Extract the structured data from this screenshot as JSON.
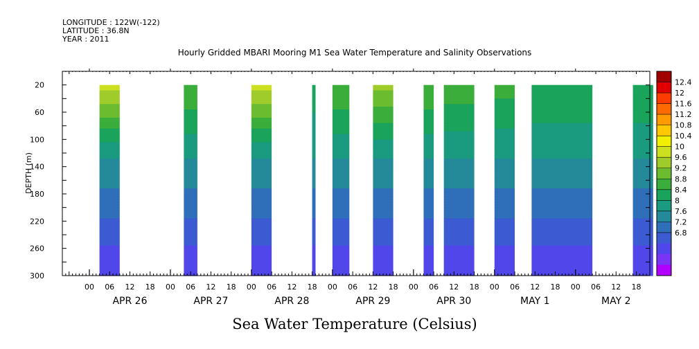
{
  "header": {
    "longitude": "LONGITUDE : 122W(-122)",
    "latitude": "LATITUDE : 36.8N",
    "year": "YEAR : 2011"
  },
  "chart_data": {
    "type": "heatmap",
    "title": "Hourly Gridded MBARI Mooring M1 Sea Water Temperature and Salinity Observations",
    "bottom_label": "Sea Water Temperature (Celsius)",
    "ylabel": "DEPTH (m)",
    "y_axis": {
      "inverted": true,
      "range": [
        0,
        300
      ],
      "ticks": [
        20,
        60,
        100,
        140,
        180,
        220,
        260,
        300
      ],
      "data_range": [
        20,
        300
      ]
    },
    "x_axis": {
      "range_hours": [
        "2011-04-25T16:00",
        "2011-05-02T22:00"
      ],
      "hour_ticks": [
        "00",
        "06",
        "12",
        "18",
        "00",
        "06",
        "12",
        "18",
        "00",
        "06",
        "12",
        "18",
        "00",
        "06",
        "12",
        "18",
        "00",
        "06",
        "12",
        "18",
        "00",
        "06",
        "12",
        "18",
        "00",
        "06",
        "12",
        "18"
      ],
      "day_labels": [
        "APR 26",
        "APR 27",
        "APR 28",
        "APR 29",
        "APR 30",
        "MAY  1",
        "MAY  2"
      ]
    },
    "colorbar": {
      "values": [
        6.8,
        7.2,
        7.6,
        8,
        8.4,
        8.8,
        9.2,
        9.6,
        10,
        10.4,
        10.8,
        11.2,
        11.6,
        12,
        12.4
      ],
      "labels": [
        "12.4",
        "12",
        "11.6",
        "11.2",
        "10.8",
        "10.4",
        "10",
        "9.6",
        "9.2",
        "8.8",
        "8.4",
        "8",
        "7.6",
        "7.2",
        "6.8"
      ],
      "colors": [
        "#b000ff",
        "#7a34f5",
        "#5046ea",
        "#3c5bd2",
        "#2f6eb8",
        "#248a9a",
        "#1a9a7e",
        "#1aa35a",
        "#3aad3a",
        "#6cbc30",
        "#9fcc2a",
        "#cce022",
        "#f0f000",
        "#ffc800",
        "#ff9a00",
        "#ff6a00",
        "#ff3c00",
        "#e00000",
        "#a00000"
      ]
    },
    "observation_blocks": [
      {
        "start": "2011-04-26T03:00",
        "end": "2011-04-26T09:00",
        "surface_temp": 11.0
      },
      {
        "start": "2011-04-27T04:00",
        "end": "2011-04-27T08:00",
        "surface_temp": 10.0
      },
      {
        "start": "2011-04-28T00:00",
        "end": "2011-04-28T06:00",
        "surface_temp": 11.0
      },
      {
        "start": "2011-04-28T18:00",
        "end": "2011-04-28T19:00",
        "surface_temp": 9.4
      },
      {
        "start": "2011-04-29T00:00",
        "end": "2011-04-29T05:00",
        "surface_temp": 10.0
      },
      {
        "start": "2011-04-29T12:00",
        "end": "2011-04-29T18:00",
        "surface_temp": 10.5
      },
      {
        "start": "2011-04-30T03:00",
        "end": "2011-04-30T06:00",
        "surface_temp": 10.0
      },
      {
        "start": "2011-04-30T09:00",
        "end": "2011-04-30T18:00",
        "surface_temp": 9.9
      },
      {
        "start": "2011-05-01T00:00",
        "end": "2011-05-01T06:00",
        "surface_temp": 9.8
      },
      {
        "start": "2011-05-01T11:00",
        "end": "2011-05-02T05:00",
        "surface_temp": 9.6
      },
      {
        "start": "2011-05-02T17:00",
        "end": "2011-05-02T23:00",
        "surface_temp": 9.6
      }
    ]
  }
}
